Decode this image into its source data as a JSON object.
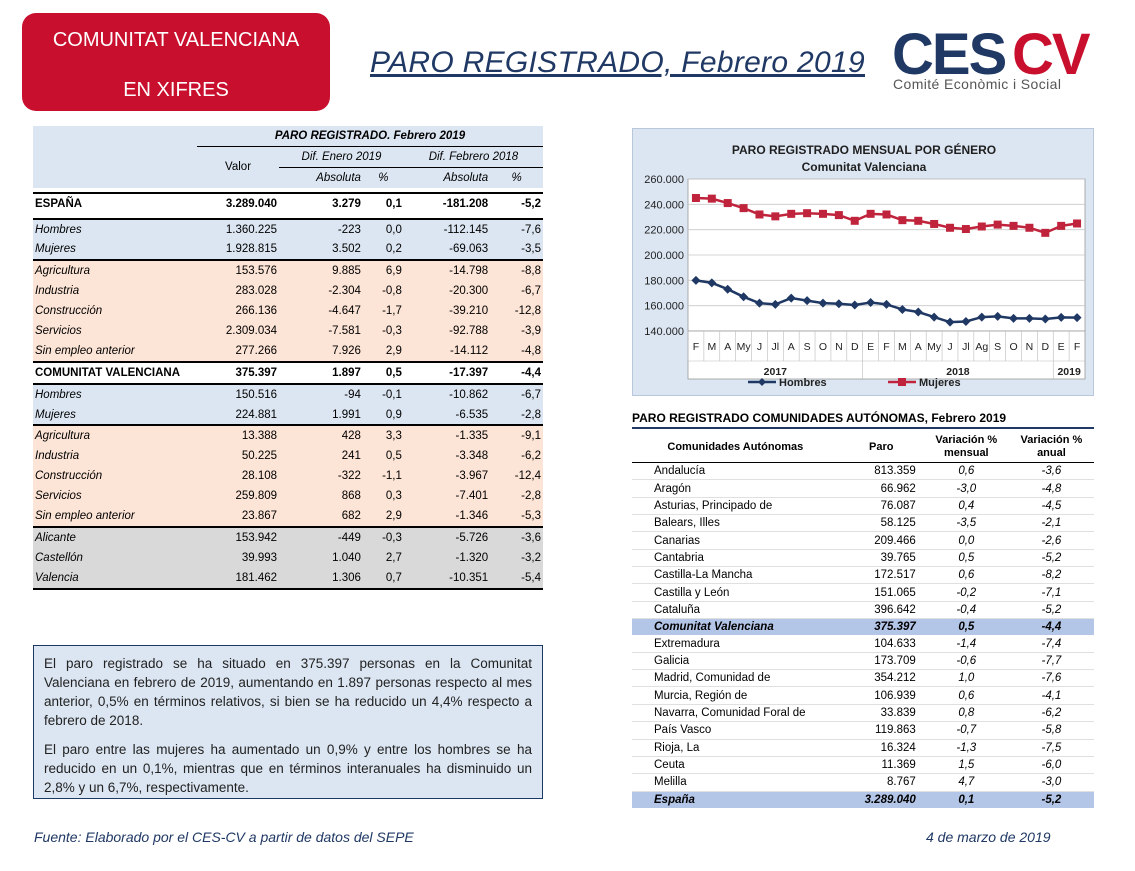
{
  "header": {
    "badge_line1": "COMUNITAT VALENCIANA",
    "badge_line2": "EN XIFRES",
    "title": "PARO REGISTRADO, Febrero 2019",
    "logo_text": "CESCV",
    "logo_subtitle": "Comité Econòmic i Social",
    "brand_red": "#c8102e",
    "brand_navy": "#1f3864"
  },
  "left_table": {
    "title": "PARO REGISTRADO. Febrero 2019",
    "col_valor": "Valor",
    "col_dif_enero": "Dif. Enero 2019",
    "col_dif_febrero": "Dif. Febrero 2018",
    "col_absoluta": "Absoluta",
    "col_pct": "%",
    "rows": [
      {
        "label": "ESPAÑA",
        "valor": "3.289.040",
        "abs1": "3.279",
        "pct1": "0,1",
        "abs2": "-181.208",
        "pct2": "-5,2"
      },
      {
        "label": "Hombres",
        "valor": "1.360.225",
        "abs1": "-223",
        "pct1": "0,0",
        "abs2": "-112.145",
        "pct2": "-7,6"
      },
      {
        "label": "Mujeres",
        "valor": "1.928.815",
        "abs1": "3.502",
        "pct1": "0,2",
        "abs2": "-69.063",
        "pct2": "-3,5"
      },
      {
        "label": "Agricultura",
        "valor": "153.576",
        "abs1": "9.885",
        "pct1": "6,9",
        "abs2": "-14.798",
        "pct2": "-8,8"
      },
      {
        "label": "Industria",
        "valor": "283.028",
        "abs1": "-2.304",
        "pct1": "-0,8",
        "abs2": "-20.300",
        "pct2": "-6,7"
      },
      {
        "label": "Construcción",
        "valor": "266.136",
        "abs1": "-4.647",
        "pct1": "-1,7",
        "abs2": "-39.210",
        "pct2": "-12,8"
      },
      {
        "label": "Servicios",
        "valor": "2.309.034",
        "abs1": "-7.581",
        "pct1": "-0,3",
        "abs2": "-92.788",
        "pct2": "-3,9"
      },
      {
        "label": "Sin empleo anterior",
        "valor": "277.266",
        "abs1": "7.926",
        "pct1": "2,9",
        "abs2": "-14.112",
        "pct2": "-4,8"
      },
      {
        "label": "COMUNITAT VALENCIANA",
        "valor": "375.397",
        "abs1": "1.897",
        "pct1": "0,5",
        "abs2": "-17.397",
        "pct2": "-4,4"
      },
      {
        "label": "Hombres",
        "valor": "150.516",
        "abs1": "-94",
        "pct1": "-0,1",
        "abs2": "-10.862",
        "pct2": "-6,7"
      },
      {
        "label": "Mujeres",
        "valor": "224.881",
        "abs1": "1.991",
        "pct1": "0,9",
        "abs2": "-6.535",
        "pct2": "-2,8"
      },
      {
        "label": "Agricultura",
        "valor": "13.388",
        "abs1": "428",
        "pct1": "3,3",
        "abs2": "-1.335",
        "pct2": "-9,1"
      },
      {
        "label": "Industria",
        "valor": "50.225",
        "abs1": "241",
        "pct1": "0,5",
        "abs2": "-3.348",
        "pct2": "-6,2"
      },
      {
        "label": "Construcción",
        "valor": "28.108",
        "abs1": "-322",
        "pct1": "-1,1",
        "abs2": "-3.967",
        "pct2": "-12,4"
      },
      {
        "label": "Servicios",
        "valor": "259.809",
        "abs1": "868",
        "pct1": "0,3",
        "abs2": "-7.401",
        "pct2": "-2,8"
      },
      {
        "label": "Sin empleo anterior",
        "valor": "23.867",
        "abs1": "682",
        "pct1": "2,9",
        "abs2": "-1.346",
        "pct2": "-5,3"
      },
      {
        "label": "Alicante",
        "valor": "153.942",
        "abs1": "-449",
        "pct1": "-0,3",
        "abs2": "-5.726",
        "pct2": "-3,6"
      },
      {
        "label": "Castellón",
        "valor": "39.993",
        "abs1": "1.040",
        "pct1": "2,7",
        "abs2": "-1.320",
        "pct2": "-3,2"
      },
      {
        "label": "Valencia",
        "valor": "181.462",
        "abs1": "1.306",
        "pct1": "0,7",
        "abs2": "-10.351",
        "pct2": "-5,4"
      }
    ]
  },
  "text_box": {
    "p1": "El paro registrado se ha situado en 375.397 personas en la Comunitat Valenciana en febrero de 2019, aumentando en 1.897 personas respecto al mes anterior, 0,5% en términos relativos, si bien se ha reducido un 4,4% respecto a febrero de 2018.",
    "p2": "El paro entre las mujeres ha aumentado un 0,9% y entre los hombres se ha reducido en un 0,1%, mientras que en términos interanuales ha disminuido un 2,8% y un 6,7%, respectivamente."
  },
  "chart_data": {
    "type": "line",
    "title": "PARO REGISTRADO MENSUAL POR GÉNERO",
    "subtitle": "Comunitat Valenciana",
    "categories": [
      "F",
      "M",
      "A",
      "My",
      "J",
      "Jl",
      "A",
      "S",
      "O",
      "N",
      "D",
      "E",
      "F",
      "M",
      "A",
      "My",
      "J",
      "Jl",
      "Ag",
      "S",
      "O",
      "N",
      "D",
      "E",
      "F"
    ],
    "year_labels": [
      "2017",
      "2018",
      "2019"
    ],
    "ylim": [
      140000,
      260000
    ],
    "y_ticks": [
      "260.000",
      "240.000",
      "220.000",
      "200.000",
      "180.000",
      "160.000",
      "140.000"
    ],
    "grid": true,
    "legend_position": "bottom",
    "series": [
      {
        "name": "Hombres",
        "color": "#1f3864",
        "values": [
          180000,
          178000,
          173000,
          167000,
          162000,
          161000,
          166000,
          164000,
          162000,
          161500,
          160500,
          162500,
          161000,
          157000,
          155000,
          151000,
          147000,
          147500,
          151000,
          151500,
          150000,
          150000,
          149500,
          150800,
          150516
        ]
      },
      {
        "name": "Mujeres",
        "color": "#c0243c",
        "values": [
          245000,
          244500,
          241000,
          237000,
          232000,
          230500,
          232500,
          233000,
          232500,
          231500,
          227000,
          232500,
          232000,
          227500,
          227000,
          224500,
          221500,
          220500,
          222500,
          224000,
          223000,
          221500,
          217500,
          223000,
          224881
        ]
      }
    ]
  },
  "right_table": {
    "title": "PARO REGISTRADO COMUNIDADES AUTÓNOMAS, Febrero 2019",
    "col_com": "Comunidades Autónomas",
    "col_paro": "Paro",
    "col_var_m1": "Variación %",
    "col_var_m2": "mensual",
    "col_var_a1": "Variación %",
    "col_var_a2": "anual",
    "rows": [
      {
        "name": "Andalucía",
        "paro": "813.359",
        "mens": "0,6",
        "anual": "-3,6"
      },
      {
        "name": "Aragón",
        "paro": "66.962",
        "mens": "-3,0",
        "anual": "-4,8"
      },
      {
        "name": "Asturias, Principado de",
        "paro": "76.087",
        "mens": "0,4",
        "anual": "-4,5"
      },
      {
        "name": "Balears, Illes",
        "paro": "58.125",
        "mens": "-3,5",
        "anual": "-2,1"
      },
      {
        "name": "Canarias",
        "paro": "209.466",
        "mens": "0,0",
        "anual": "-2,6"
      },
      {
        "name": "Cantabria",
        "paro": "39.765",
        "mens": "0,5",
        "anual": "-5,2"
      },
      {
        "name": "Castilla-La Mancha",
        "paro": "172.517",
        "mens": "0,6",
        "anual": "-8,2"
      },
      {
        "name": "Castilla y León",
        "paro": "151.065",
        "mens": "-0,2",
        "anual": "-7,1"
      },
      {
        "name": "Cataluña",
        "paro": "396.642",
        "mens": "-0,4",
        "anual": "-5,2"
      },
      {
        "name": "Comunitat Valenciana",
        "paro": "375.397",
        "mens": "0,5",
        "anual": "-4,4"
      },
      {
        "name": "Extremadura",
        "paro": "104.633",
        "mens": "-1,4",
        "anual": "-7,4"
      },
      {
        "name": "Galicia",
        "paro": "173.709",
        "mens": "-0,6",
        "anual": "-7,7"
      },
      {
        "name": "Madrid, Comunidad de",
        "paro": "354.212",
        "mens": "1,0",
        "anual": "-7,6"
      },
      {
        "name": "Murcia, Región de",
        "paro": "106.939",
        "mens": "0,6",
        "anual": "-4,1"
      },
      {
        "name": "Navarra, Comunidad Foral de",
        "paro": "33.839",
        "mens": "0,8",
        "anual": "-6,2"
      },
      {
        "name": "País Vasco",
        "paro": "119.863",
        "mens": "-0,7",
        "anual": "-5,8"
      },
      {
        "name": "Rioja, La",
        "paro": "16.324",
        "mens": "-1,3",
        "anual": "-7,5"
      },
      {
        "name": "Ceuta",
        "paro": "11.369",
        "mens": "1,5",
        "anual": "-6,0"
      },
      {
        "name": "Melilla",
        "paro": "8.767",
        "mens": "4,7",
        "anual": "-3,0"
      },
      {
        "name": "España",
        "paro": "3.289.040",
        "mens": "0,1",
        "anual": "-5,2"
      }
    ]
  },
  "footer": {
    "source": "Fuente: Elaborado por el CES-CV a partir de datos del SEPE",
    "date": "4 de marzo de 2019"
  }
}
